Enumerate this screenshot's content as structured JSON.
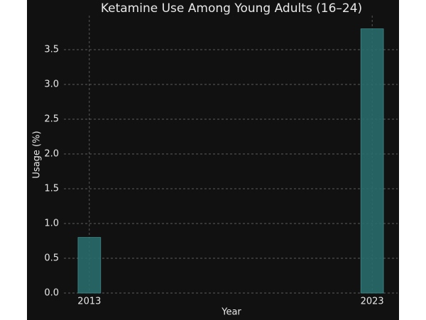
{
  "chart_data": {
    "type": "bar",
    "title": "Ketamine Use Among Young Adults (16–24)",
    "x_label": "Year",
    "y_label": "Usage (%)",
    "x": [
      2013,
      2023
    ],
    "values": [
      0.8,
      3.8
    ],
    "color": "#2a6b6b",
    "xlim": [
      2012.1,
      2023.9
    ],
    "xticks": [
      2013,
      2023
    ],
    "ylim": [
      0,
      3.99
    ],
    "yticks": [
      {
        "value": 0,
        "label": "0.0"
      },
      0.5,
      {
        "value": 1,
        "label": "1.0"
      },
      1.5,
      {
        "value": 2,
        "label": "2.0"
      },
      2.5,
      {
        "value": 3,
        "label": "3.0"
      },
      3.5
    ],
    "grid": true
  }
}
